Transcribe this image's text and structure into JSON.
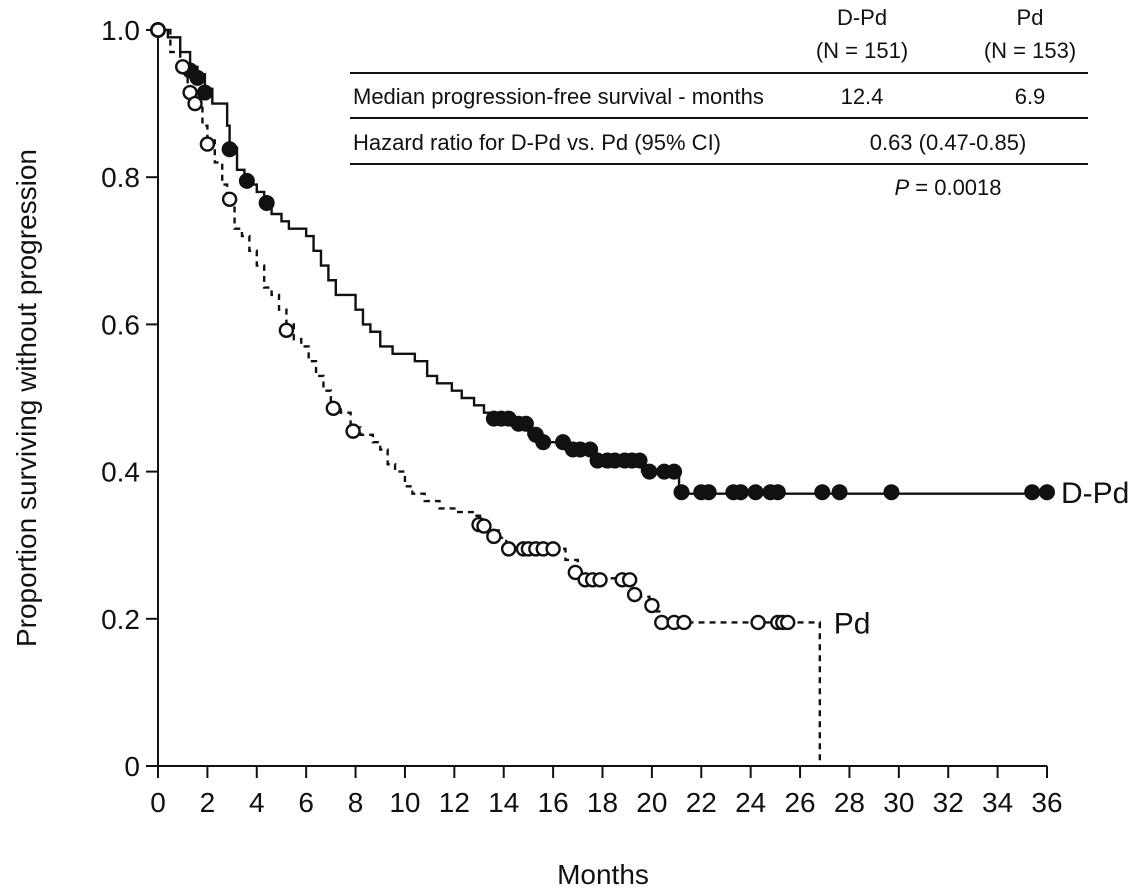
{
  "chart_data": {
    "type": "line",
    "subtype": "kaplan-meier",
    "title": "",
    "xlabel": "Months",
    "ylabel": "Proportion surviving without progression",
    "xlim": [
      0,
      36
    ],
    "ylim": [
      0,
      1.0
    ],
    "xticks": [
      "0",
      "2",
      "4",
      "6",
      "8",
      "10",
      "12",
      "14",
      "16",
      "18",
      "20",
      "22",
      "24",
      "26",
      "28",
      "30",
      "32",
      "34",
      "36"
    ],
    "yticks": [
      {
        "value": 0,
        "label": "0"
      },
      {
        "value": 0.2,
        "label": "0.2"
      },
      {
        "value": 0.4,
        "label": "0.4"
      },
      {
        "value": 0.6,
        "label": "0.6"
      },
      {
        "value": 0.8,
        "label": "0.8"
      },
      {
        "value": 1.0,
        "label": "1.0"
      }
    ],
    "grid": false,
    "series": [
      {
        "name": "D-Pd",
        "line_style": "solid",
        "marker": "filled-circle",
        "color": "#111111",
        "steps": [
          [
            0,
            1.0
          ],
          [
            0.4,
            0.99
          ],
          [
            0.9,
            0.97
          ],
          [
            1.3,
            0.95
          ],
          [
            1.6,
            0.94
          ],
          [
            1.9,
            0.92
          ],
          [
            2.2,
            0.9
          ],
          [
            2.8,
            0.87
          ],
          [
            2.9,
            0.84
          ],
          [
            3.2,
            0.81
          ],
          [
            3.5,
            0.79
          ],
          [
            4.0,
            0.78
          ],
          [
            4.3,
            0.765
          ],
          [
            4.6,
            0.75
          ],
          [
            5.0,
            0.74
          ],
          [
            5.3,
            0.73
          ],
          [
            6.0,
            0.72
          ],
          [
            6.3,
            0.7
          ],
          [
            6.6,
            0.68
          ],
          [
            6.9,
            0.66
          ],
          [
            7.2,
            0.64
          ],
          [
            7.6,
            0.64
          ],
          [
            8.0,
            0.62
          ],
          [
            8.3,
            0.6
          ],
          [
            8.6,
            0.59
          ],
          [
            9.0,
            0.57
          ],
          [
            9.5,
            0.56
          ],
          [
            10.0,
            0.56
          ],
          [
            10.4,
            0.55
          ],
          [
            10.9,
            0.53
          ],
          [
            11.3,
            0.52
          ],
          [
            11.9,
            0.51
          ],
          [
            12.3,
            0.5
          ],
          [
            12.8,
            0.49
          ],
          [
            13.2,
            0.48
          ],
          [
            13.6,
            0.47
          ],
          [
            14.5,
            0.465
          ],
          [
            15.0,
            0.45
          ],
          [
            15.4,
            0.44
          ],
          [
            16.0,
            0.44
          ],
          [
            16.5,
            0.43
          ],
          [
            17.0,
            0.43
          ],
          [
            17.6,
            0.415
          ],
          [
            18.8,
            0.41
          ],
          [
            19.6,
            0.4
          ],
          [
            20.3,
            0.4
          ],
          [
            21.1,
            0.37
          ],
          [
            36.0,
            0.37
          ]
        ],
        "censor_marks": [
          [
            0,
            1.0
          ],
          [
            1.3,
            0.945
          ],
          [
            1.6,
            0.935
          ],
          [
            1.9,
            0.915
          ],
          [
            2.9,
            0.838
          ],
          [
            3.6,
            0.795
          ],
          [
            4.4,
            0.765
          ],
          [
            13.6,
            0.472
          ],
          [
            13.9,
            0.472
          ],
          [
            14.2,
            0.472
          ],
          [
            14.6,
            0.465
          ],
          [
            14.9,
            0.465
          ],
          [
            15.3,
            0.45
          ],
          [
            15.6,
            0.44
          ],
          [
            16.4,
            0.44
          ],
          [
            16.8,
            0.43
          ],
          [
            17.1,
            0.43
          ],
          [
            17.5,
            0.43
          ],
          [
            17.8,
            0.415
          ],
          [
            18.2,
            0.415
          ],
          [
            18.5,
            0.415
          ],
          [
            18.9,
            0.415
          ],
          [
            19.2,
            0.415
          ],
          [
            19.5,
            0.415
          ],
          [
            19.9,
            0.4
          ],
          [
            20.5,
            0.4
          ],
          [
            20.9,
            0.4
          ],
          [
            21.2,
            0.372
          ],
          [
            22.0,
            0.372
          ],
          [
            22.3,
            0.372
          ],
          [
            23.3,
            0.372
          ],
          [
            23.6,
            0.372
          ],
          [
            24.2,
            0.372
          ],
          [
            24.8,
            0.372
          ],
          [
            25.1,
            0.372
          ],
          [
            26.9,
            0.372
          ],
          [
            27.6,
            0.372
          ],
          [
            29.7,
            0.372
          ],
          [
            35.4,
            0.372
          ],
          [
            36.0,
            0.372
          ]
        ]
      },
      {
        "name": "Pd",
        "line_style": "dashed",
        "marker": "open-circle",
        "color": "#111111",
        "steps": [
          [
            0,
            1.0
          ],
          [
            0.5,
            0.97
          ],
          [
            0.9,
            0.95
          ],
          [
            1.2,
            0.92
          ],
          [
            1.5,
            0.9
          ],
          [
            1.8,
            0.87
          ],
          [
            2.0,
            0.85
          ],
          [
            2.3,
            0.82
          ],
          [
            2.6,
            0.79
          ],
          [
            2.8,
            0.77
          ],
          [
            3.1,
            0.73
          ],
          [
            3.4,
            0.72
          ],
          [
            3.7,
            0.7
          ],
          [
            4.0,
            0.68
          ],
          [
            4.3,
            0.65
          ],
          [
            4.6,
            0.64
          ],
          [
            4.9,
            0.62
          ],
          [
            5.2,
            0.6
          ],
          [
            5.5,
            0.58
          ],
          [
            5.8,
            0.57
          ],
          [
            6.1,
            0.55
          ],
          [
            6.4,
            0.53
          ],
          [
            6.7,
            0.51
          ],
          [
            7.0,
            0.49
          ],
          [
            7.4,
            0.48
          ],
          [
            7.8,
            0.46
          ],
          [
            8.2,
            0.45
          ],
          [
            8.7,
            0.44
          ],
          [
            9.0,
            0.43
          ],
          [
            9.3,
            0.41
          ],
          [
            9.6,
            0.4
          ],
          [
            10.0,
            0.38
          ],
          [
            10.3,
            0.37
          ],
          [
            10.8,
            0.36
          ],
          [
            11.4,
            0.35
          ],
          [
            12.0,
            0.345
          ],
          [
            12.8,
            0.34
          ],
          [
            13.1,
            0.33
          ],
          [
            13.4,
            0.32
          ],
          [
            13.8,
            0.31
          ],
          [
            14.1,
            0.295
          ],
          [
            16.0,
            0.295
          ],
          [
            16.5,
            0.28
          ],
          [
            17.0,
            0.26
          ],
          [
            17.4,
            0.255
          ],
          [
            18.5,
            0.255
          ],
          [
            19.1,
            0.24
          ],
          [
            19.5,
            0.23
          ],
          [
            19.9,
            0.22
          ],
          [
            20.2,
            0.21
          ],
          [
            20.4,
            0.195
          ],
          [
            26.8,
            0.195
          ],
          [
            26.8,
            0.0
          ]
        ],
        "censor_marks": [
          [
            0,
            1.0
          ],
          [
            1.0,
            0.95
          ],
          [
            1.3,
            0.915
          ],
          [
            1.5,
            0.9
          ],
          [
            2.0,
            0.845
          ],
          [
            2.9,
            0.77
          ],
          [
            5.2,
            0.592
          ],
          [
            7.1,
            0.486
          ],
          [
            7.9,
            0.455
          ],
          [
            13.0,
            0.328
          ],
          [
            13.2,
            0.326
          ],
          [
            13.6,
            0.312
          ],
          [
            14.2,
            0.295
          ],
          [
            14.8,
            0.295
          ],
          [
            15.0,
            0.295
          ],
          [
            15.3,
            0.295
          ],
          [
            15.6,
            0.295
          ],
          [
            16.0,
            0.295
          ],
          [
            16.9,
            0.263
          ],
          [
            17.3,
            0.253
          ],
          [
            17.6,
            0.253
          ],
          [
            17.9,
            0.253
          ],
          [
            18.8,
            0.253
          ],
          [
            19.1,
            0.253
          ],
          [
            19.3,
            0.233
          ],
          [
            20.0,
            0.218
          ],
          [
            20.4,
            0.195
          ],
          [
            20.9,
            0.195
          ],
          [
            21.3,
            0.195
          ],
          [
            24.3,
            0.195
          ],
          [
            25.1,
            0.195
          ],
          [
            25.3,
            0.195
          ],
          [
            25.5,
            0.195
          ]
        ]
      }
    ],
    "series_labels": [
      {
        "text": "D-Pd",
        "x": 36.0,
        "y": 0.372
      },
      {
        "text": "Pd",
        "x": 26.8,
        "y": 0.195
      }
    ],
    "inset_table": {
      "col1_header_line1": "D-Pd",
      "col1_header_line2": "(N = 151)",
      "col2_header_line1": "Pd",
      "col2_header_line2": "(N = 153)",
      "row1_label": "Median progression-free survival - months",
      "row1_val1": "12.4",
      "row1_val2": "6.9",
      "row2_label": "Hazard ratio for D-Pd vs. Pd (95% CI)",
      "row2_val": "0.63 (0.47-0.85)",
      "p_label": "P",
      "p_value": " = 0.0018"
    }
  }
}
